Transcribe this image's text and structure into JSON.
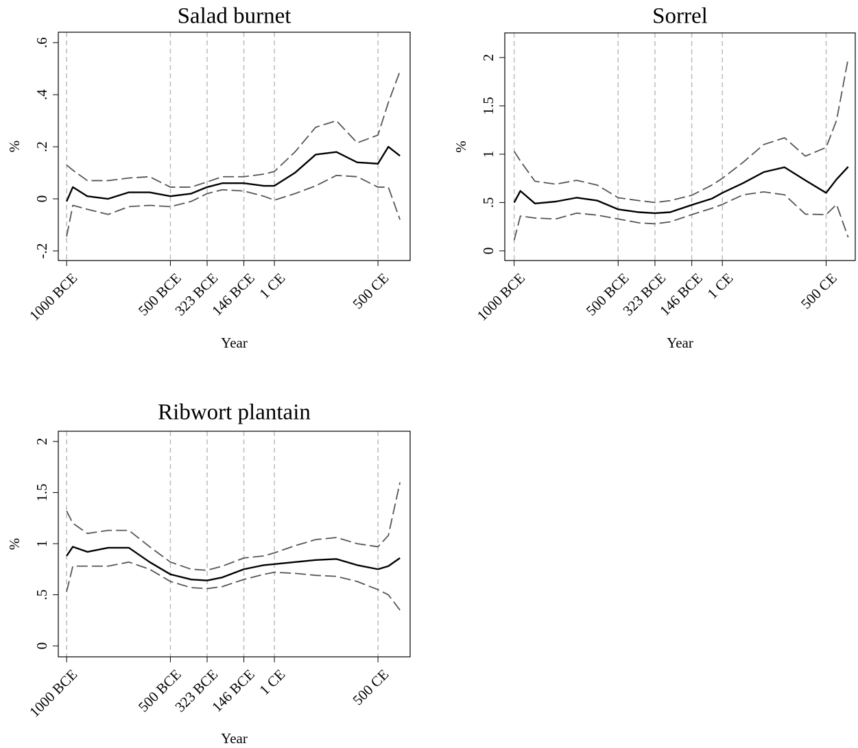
{
  "chart_data": [
    {
      "type": "line",
      "title": "Salad burnet",
      "xlabel": "Year",
      "ylabel": "%",
      "x": [
        -1000,
        -970,
        -900,
        -800,
        -700,
        -600,
        -500,
        -400,
        -323,
        -250,
        -146,
        -50,
        1,
        100,
        200,
        300,
        400,
        500,
        550,
        606
      ],
      "xlim": [
        -1040,
        655
      ],
      "xticks": [
        {
          "value": -1000,
          "label": "1000 BCE"
        },
        {
          "value": -500,
          "label": "500 BCE"
        },
        {
          "value": -323,
          "label": "323 BCE"
        },
        {
          "value": -146,
          "label": "146 BCE"
        },
        {
          "value": 1,
          "label": "1 CE"
        },
        {
          "value": 500,
          "label": "500 CE"
        }
      ],
      "ylim": [
        -0.237,
        0.64
      ],
      "yticks": [
        {
          "value": -0.2,
          "label": "-.2"
        },
        0,
        {
          "value": 0.2,
          "label": ".2"
        },
        {
          "value": 0.4,
          "label": ".4"
        },
        {
          "value": 0.6,
          "label": ".6"
        }
      ],
      "grid": "x",
      "series": [
        {
          "color": "#555555",
          "style": "dashed",
          "values": [
            0.13,
            0.11,
            0.07,
            0.07,
            0.08,
            0.085,
            0.045,
            0.045,
            0.065,
            0.085,
            0.085,
            0.095,
            0.105,
            0.18,
            0.275,
            0.3,
            0.215,
            0.245,
            0.37,
            0.49
          ]
        },
        {
          "color": "#000000",
          "style": "solid",
          "values": [
            -0.01,
            0.045,
            0.01,
            0.0,
            0.025,
            0.025,
            0.01,
            0.02,
            0.045,
            0.06,
            0.06,
            0.05,
            0.05,
            0.1,
            0.17,
            0.18,
            0.14,
            0.135,
            0.2,
            0.165
          ]
        },
        {
          "color": "#555555",
          "style": "dashed",
          "values": [
            -0.145,
            -0.025,
            -0.04,
            -0.06,
            -0.03,
            -0.025,
            -0.03,
            -0.01,
            0.02,
            0.035,
            0.03,
            0.01,
            -0.005,
            0.02,
            0.05,
            0.09,
            0.085,
            0.045,
            0.045,
            -0.08
          ]
        }
      ]
    },
    {
      "type": "line",
      "title": "Sorrel",
      "xlabel": "Year",
      "ylabel": "%",
      "x": [
        -1000,
        -970,
        -900,
        -800,
        -700,
        -600,
        -500,
        -400,
        -323,
        -250,
        -146,
        -50,
        1,
        100,
        200,
        300,
        400,
        500,
        550,
        606
      ],
      "xlim": [
        -1045,
        640
      ],
      "xticks": [
        {
          "value": -1000,
          "label": "1000 BCE"
        },
        {
          "value": -500,
          "label": "500 BCE"
        },
        {
          "value": -323,
          "label": "323 BCE"
        },
        {
          "value": -146,
          "label": "146 BCE"
        },
        {
          "value": 1,
          "label": "1 CE"
        },
        {
          "value": 500,
          "label": "500 CE"
        }
      ],
      "ylim": [
        -0.1,
        2.255
      ],
      "yticks": [
        0,
        {
          "value": 0.5,
          "label": ".5"
        },
        1,
        1.5,
        2
      ],
      "grid": "x",
      "series": [
        {
          "color": "#555555",
          "style": "dashed",
          "values": [
            1.03,
            0.93,
            0.72,
            0.69,
            0.73,
            0.68,
            0.55,
            0.52,
            0.5,
            0.52,
            0.575,
            0.68,
            0.75,
            0.915,
            1.1,
            1.17,
            0.98,
            1.07,
            1.35,
            1.99
          ]
        },
        {
          "color": "#000000",
          "style": "solid",
          "values": [
            0.5,
            0.62,
            0.49,
            0.51,
            0.55,
            0.52,
            0.43,
            0.4,
            0.39,
            0.4,
            0.475,
            0.54,
            0.6,
            0.7,
            0.815,
            0.865,
            0.73,
            0.6,
            0.74,
            0.87
          ]
        },
        {
          "color": "#555555",
          "style": "dashed",
          "values": [
            0.11,
            0.36,
            0.34,
            0.33,
            0.39,
            0.37,
            0.33,
            0.29,
            0.28,
            0.3,
            0.375,
            0.44,
            0.48,
            0.58,
            0.61,
            0.58,
            0.38,
            0.375,
            0.48,
            0.14
          ]
        }
      ]
    },
    {
      "type": "line",
      "title": "Ribwort plantain",
      "xlabel": "Year",
      "ylabel": "%",
      "x": [
        -1000,
        -970,
        -900,
        -800,
        -700,
        -600,
        -500,
        -400,
        -323,
        -250,
        -146,
        -50,
        1,
        100,
        200,
        300,
        400,
        500,
        550,
        606
      ],
      "xlim": [
        -1040,
        655
      ],
      "xticks": [
        {
          "value": -1000,
          "label": "1000 BCE"
        },
        {
          "value": -500,
          "label": "500 BCE"
        },
        {
          "value": -323,
          "label": "323 BCE"
        },
        {
          "value": -146,
          "label": "146 BCE"
        },
        {
          "value": 1,
          "label": "1 CE"
        },
        {
          "value": 500,
          "label": "500 CE"
        }
      ],
      "ylim": [
        -0.107,
        2.1
      ],
      "yticks": [
        0,
        {
          "value": 0.5,
          "label": ".5"
        },
        1,
        1.5,
        2
      ],
      "grid": "x",
      "series": [
        {
          "color": "#555555",
          "style": "dashed",
          "values": [
            1.32,
            1.2,
            1.1,
            1.13,
            1.13,
            0.97,
            0.82,
            0.75,
            0.74,
            0.78,
            0.86,
            0.88,
            0.91,
            0.98,
            1.04,
            1.06,
            1.0,
            0.97,
            1.08,
            1.6
          ]
        },
        {
          "color": "#000000",
          "style": "solid",
          "values": [
            0.88,
            0.97,
            0.92,
            0.96,
            0.96,
            0.82,
            0.7,
            0.65,
            0.64,
            0.67,
            0.75,
            0.79,
            0.8,
            0.82,
            0.84,
            0.85,
            0.79,
            0.75,
            0.78,
            0.86
          ]
        },
        {
          "color": "#555555",
          "style": "dashed",
          "values": [
            0.53,
            0.78,
            0.78,
            0.78,
            0.82,
            0.75,
            0.63,
            0.57,
            0.56,
            0.58,
            0.65,
            0.7,
            0.72,
            0.71,
            0.69,
            0.68,
            0.63,
            0.55,
            0.5,
            0.35
          ]
        }
      ]
    }
  ]
}
